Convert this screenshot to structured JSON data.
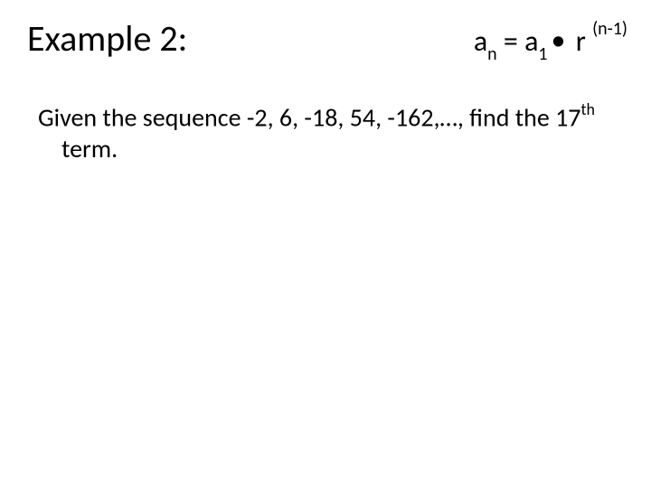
{
  "colors": {
    "background": "#ffffff",
    "text": "#000000"
  },
  "typography": {
    "title_fontsize": 40,
    "formula_fontsize": 32,
    "body_fontsize": 28,
    "subsup_fontsize": 20,
    "ordinal_sup_fontsize": 18,
    "font_family": "Calibri"
  },
  "header": {
    "title": "Example 2:",
    "formula": {
      "lhs_base": "a",
      "lhs_sub": "n",
      "eq": " = ",
      "a1_base": "a",
      "a1_sub": "1",
      "dot": "•",
      "r_base": " r ",
      "exp": "(n-1)"
    }
  },
  "body": {
    "line_pre": "Given the sequence -2, 6, -18, 54, -162,…, find the 17",
    "ordinal_sup": "th",
    "line_post": " term."
  }
}
